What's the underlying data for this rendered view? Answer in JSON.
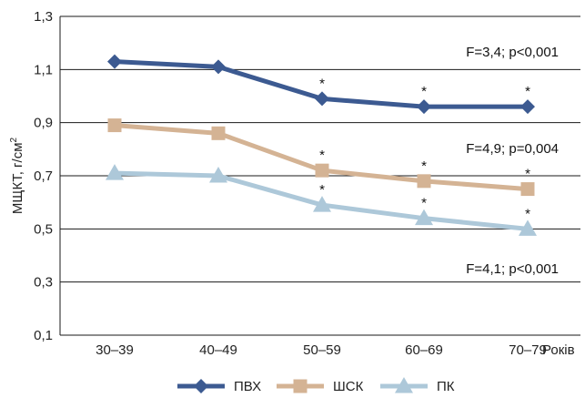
{
  "chart_data": {
    "type": "line",
    "categories": [
      "30–39",
      "40–49",
      "50–59",
      "60–69",
      "70–79"
    ],
    "x_unit_label": "Років",
    "ylabel": "МЩКТ, г/см",
    "ylabel_superscript": "2",
    "ylim": [
      0.1,
      1.3
    ],
    "yticks": [
      "0,1",
      "0,3",
      "0,5",
      "0,7",
      "0,9",
      "1,1",
      "1,3"
    ],
    "grid": true,
    "legend_position": "bottom",
    "series": [
      {
        "name": "ПВХ",
        "color": "#3c5a91",
        "marker": "diamond",
        "values": [
          1.13,
          1.11,
          0.99,
          0.96,
          0.96
        ],
        "significant": [
          false,
          false,
          true,
          true,
          true
        ],
        "stat": "F=3,4; p<0,001"
      },
      {
        "name": "ШСК",
        "color": "#d4b394",
        "marker": "square",
        "values": [
          0.89,
          0.86,
          0.72,
          0.68,
          0.65
        ],
        "significant": [
          false,
          false,
          true,
          true,
          true
        ],
        "stat": "F=4,9; p=0,004"
      },
      {
        "name": "ПК",
        "color": "#adc8d9",
        "marker": "triangle",
        "values": [
          0.71,
          0.7,
          0.59,
          0.54,
          0.5
        ],
        "significant": [
          false,
          false,
          true,
          true,
          true
        ],
        "stat": "F=4,1; p<0,001"
      }
    ],
    "significance_marker": "*"
  }
}
